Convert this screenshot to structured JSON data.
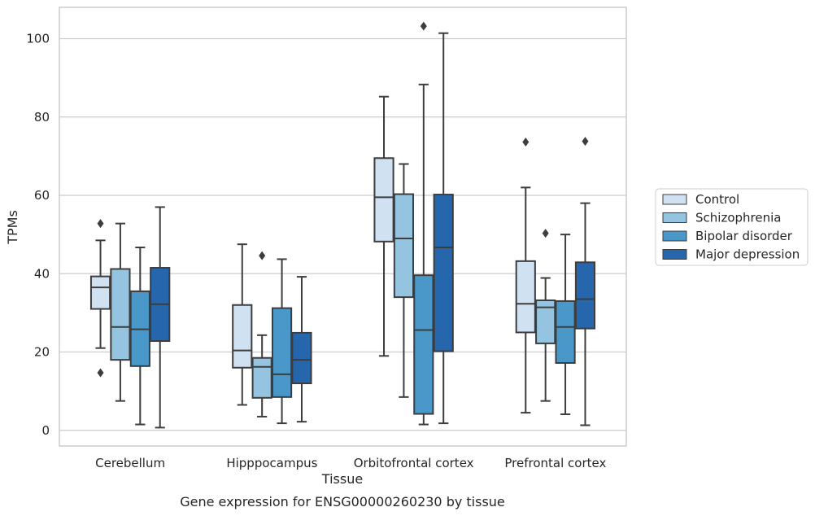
{
  "chart_data": {
    "type": "box",
    "caption": "Gene expression for ENSG00000260230 by tissue",
    "xlabel": "Tissue",
    "ylabel": "TPMs",
    "ylim": [
      -4,
      108
    ],
    "yticks": [
      0,
      20,
      40,
      60,
      80,
      100
    ],
    "grid": "horizontal",
    "legend_placement": "right",
    "categories": [
      "Cerebellum",
      "Hipppocampus",
      "Orbitofrontal cortex",
      "Prefrontal cortex"
    ],
    "series": [
      {
        "name": "Control",
        "color": "#d0e1f2",
        "boxes": [
          {
            "whislo": 21.0,
            "q1": 31.0,
            "med": 36.5,
            "q3": 39.3,
            "whishi": 48.5,
            "fliers": [
              52.8,
              14.7
            ]
          },
          {
            "whislo": 6.5,
            "q1": 16.0,
            "med": 20.4,
            "q3": 32.0,
            "whishi": 47.5,
            "fliers": []
          },
          {
            "whislo": 19.0,
            "q1": 48.2,
            "med": 59.5,
            "q3": 69.5,
            "whishi": 85.2,
            "fliers": []
          },
          {
            "whislo": 4.5,
            "q1": 25.0,
            "med": 32.3,
            "q3": 43.2,
            "whishi": 62.0,
            "fliers": [
              73.6
            ]
          }
        ]
      },
      {
        "name": "Schizophrenia",
        "color": "#94c4df",
        "boxes": [
          {
            "whislo": 7.5,
            "q1": 18.0,
            "med": 26.4,
            "q3": 41.2,
            "whishi": 52.8,
            "fliers": []
          },
          {
            "whislo": 3.5,
            "q1": 8.3,
            "med": 16.2,
            "q3": 18.5,
            "whishi": 24.3,
            "fliers": [
              44.6
            ]
          },
          {
            "whislo": 8.5,
            "q1": 34.0,
            "med": 49.0,
            "q3": 60.3,
            "whishi": 68.0,
            "fliers": []
          },
          {
            "whislo": 7.5,
            "q1": 22.2,
            "med": 31.4,
            "q3": 33.2,
            "whishi": 38.9,
            "fliers": [
              50.3
            ]
          }
        ]
      },
      {
        "name": "Bipolar disorder",
        "color": "#4a98c9",
        "boxes": [
          {
            "whislo": 1.5,
            "q1": 16.4,
            "med": 25.8,
            "q3": 35.5,
            "whishi": 46.7,
            "fliers": []
          },
          {
            "whislo": 1.8,
            "q1": 8.5,
            "med": 14.3,
            "q3": 31.2,
            "whishi": 43.7,
            "fliers": []
          },
          {
            "whislo": 1.5,
            "q1": 4.2,
            "med": 25.6,
            "q3": 39.6,
            "whishi": 88.3,
            "fliers": [
              103.2
            ]
          },
          {
            "whislo": 4.1,
            "q1": 17.2,
            "med": 26.4,
            "q3": 33.0,
            "whishi": 50.0,
            "fliers": []
          }
        ]
      },
      {
        "name": "Major depression",
        "color": "#2566ac",
        "boxes": [
          {
            "whislo": 0.7,
            "q1": 22.8,
            "med": 32.2,
            "q3": 41.5,
            "whishi": 57.0,
            "fliers": []
          },
          {
            "whislo": 2.2,
            "q1": 12.0,
            "med": 18.0,
            "q3": 24.9,
            "whishi": 39.2,
            "fliers": []
          },
          {
            "whislo": 1.8,
            "q1": 20.2,
            "med": 46.7,
            "q3": 60.2,
            "whishi": 101.4,
            "fliers": []
          },
          {
            "whislo": 1.3,
            "q1": 26.0,
            "med": 33.5,
            "q3": 42.9,
            "whishi": 58.0,
            "fliers": [
              73.8
            ]
          }
        ]
      }
    ]
  }
}
